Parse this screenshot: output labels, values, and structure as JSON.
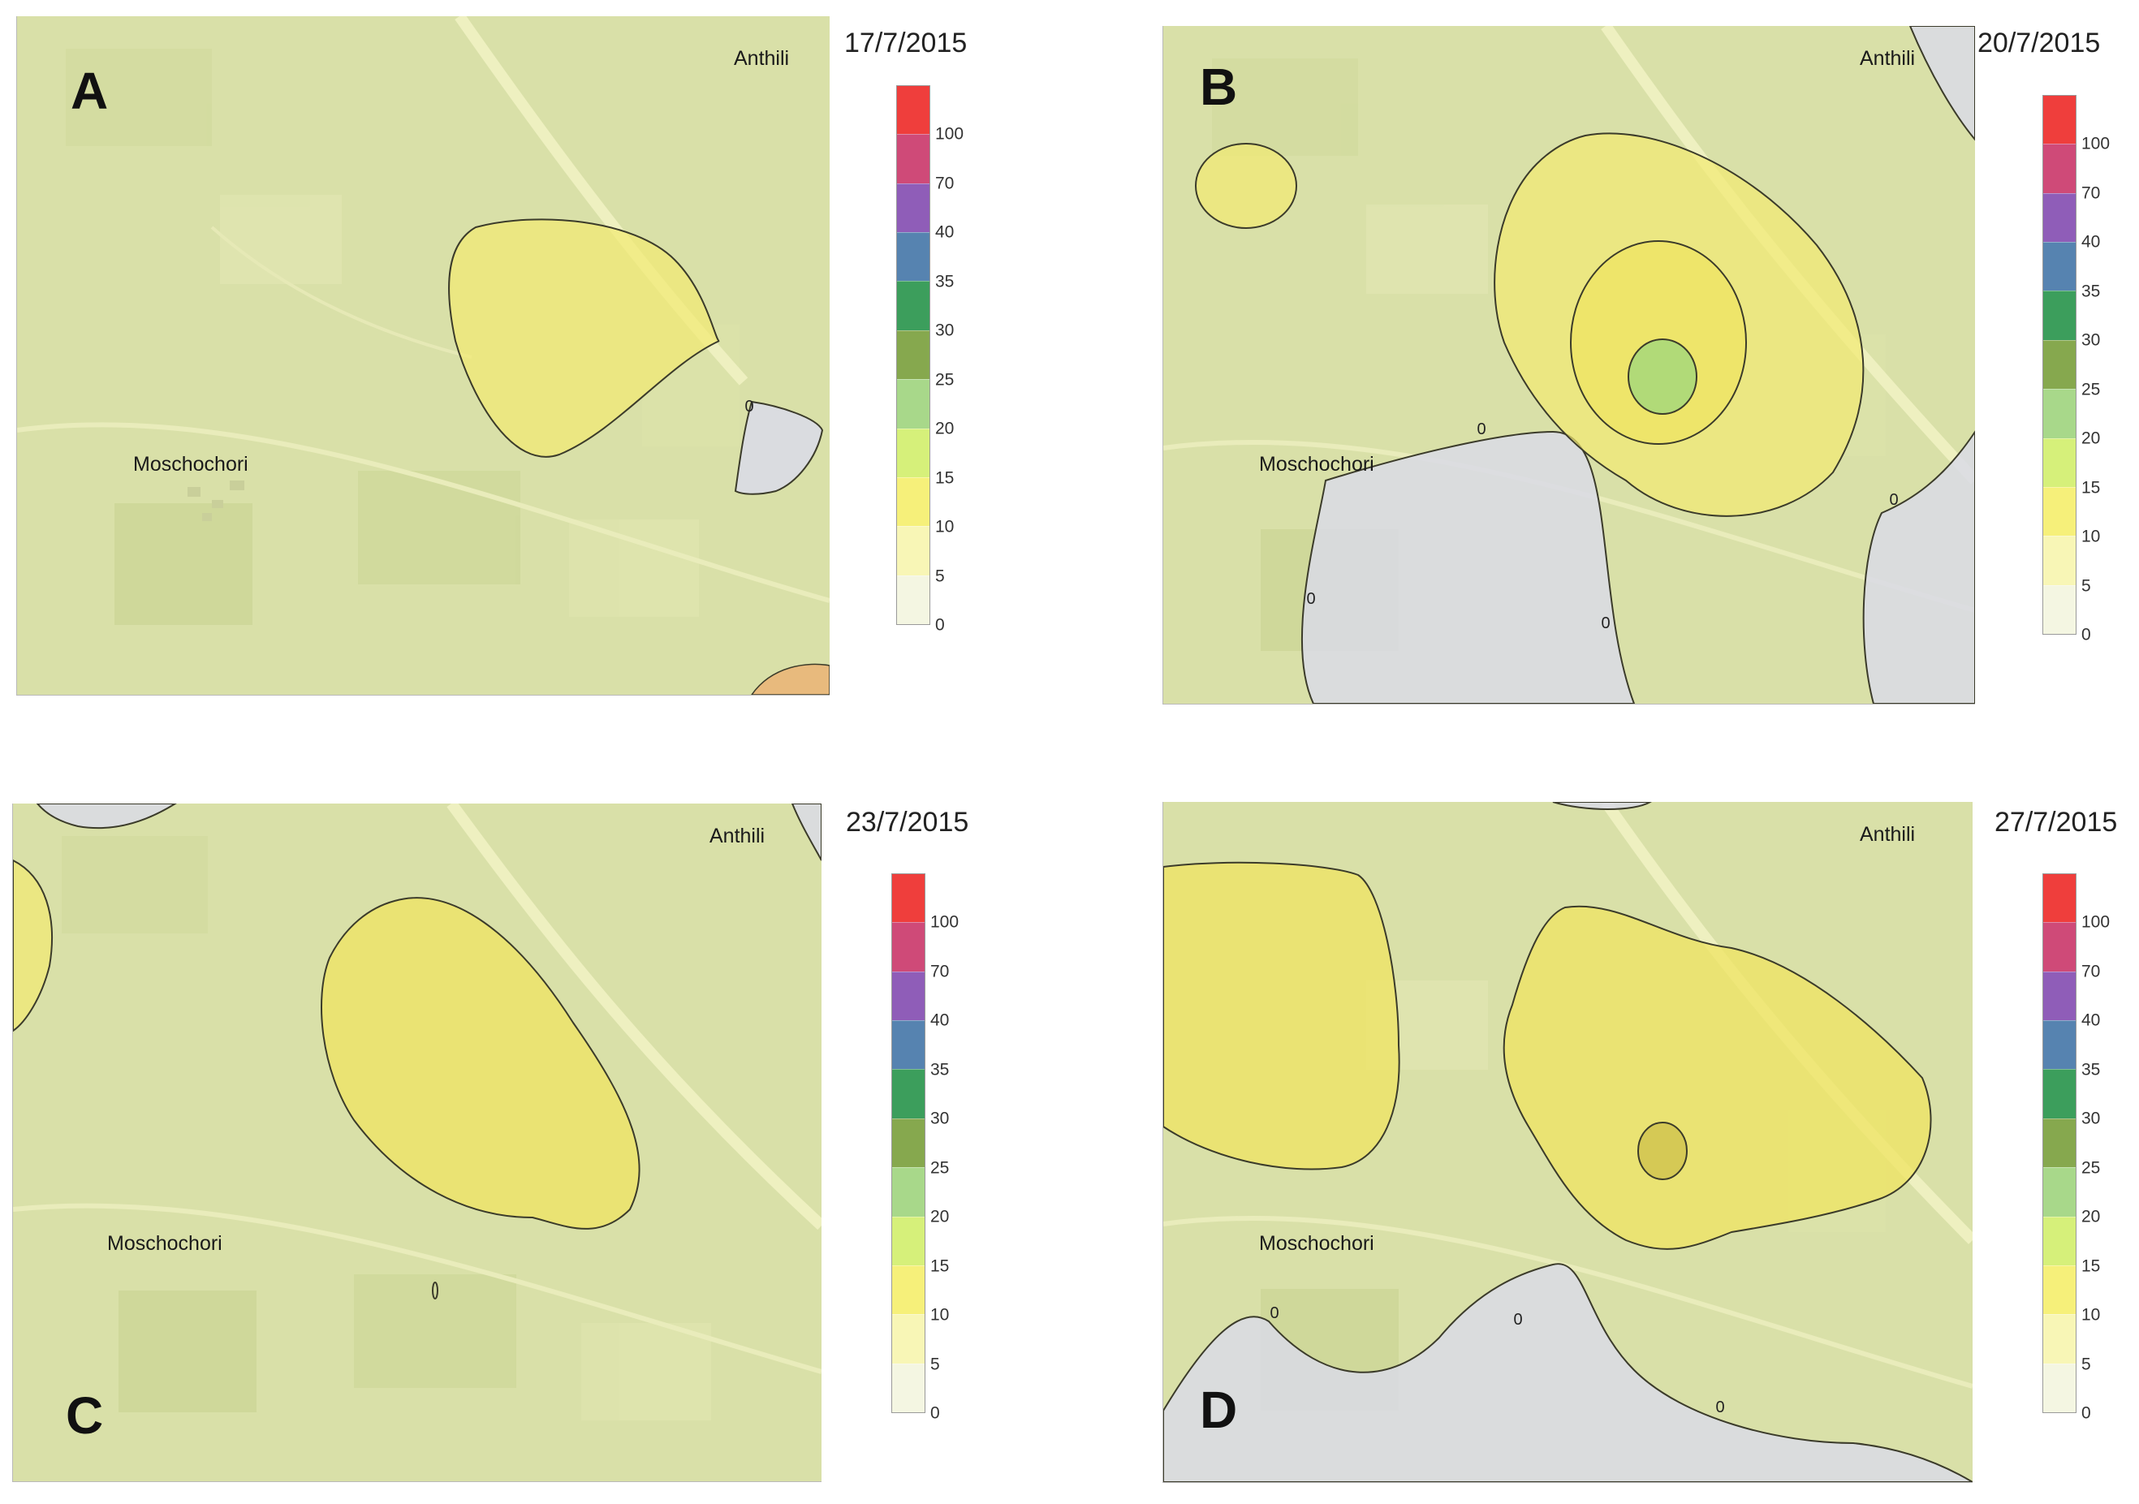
{
  "panels": [
    {
      "letter": "A",
      "date": "17/7/2015",
      "place_north": "Anthili",
      "place_west": "Moschochori"
    },
    {
      "letter": "B",
      "date": "20/7/2015",
      "place_north": "Anthili",
      "place_west": "Moschochori"
    },
    {
      "letter": "C",
      "date": "23/7/2015",
      "place_north": "Anthili",
      "place_west": "Moschochori"
    },
    {
      "letter": "D",
      "date": "27/7/2015",
      "place_north": "Anthili",
      "place_west": "Moschochori"
    }
  ],
  "contour_label": "0",
  "legend": {
    "ticks": [
      "100",
      "70",
      "40",
      "35",
      "30",
      "25",
      "20",
      "15",
      "10",
      "5",
      "0"
    ],
    "colors": [
      "#ef3e3c",
      "#cf4a78",
      "#8f5db8",
      "#5683b0",
      "#3c9e5c",
      "#86a84e",
      "#a8d88a",
      "#d6f07a",
      "#f6f07a",
      "#f8f6b6",
      "#f4f6e2"
    ]
  },
  "colors": {
    "map_base": "#d9e0a8",
    "zone_low": "#f2ea72",
    "zone_mid": "#efe462",
    "zone_high": "#a6d87a",
    "zone_zero": "#d9dbe6"
  }
}
